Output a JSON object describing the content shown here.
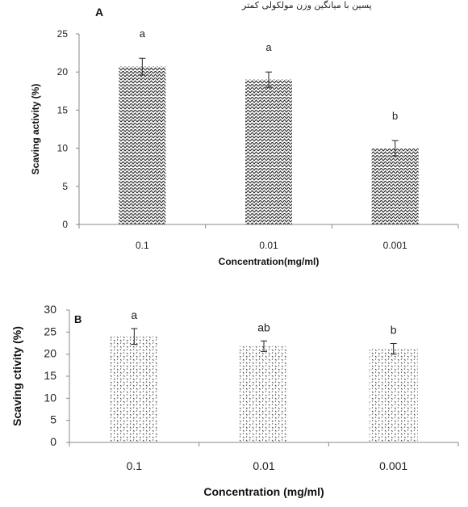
{
  "header_text": "پسین با میانگین وزن مولکولی کمتر",
  "chart_data": [
    {
      "type": "bar",
      "panel": "A",
      "categories": [
        "0.1",
        "0.01",
        "0.001"
      ],
      "values": [
        20.7,
        19.0,
        10.0
      ],
      "errors": [
        1.1,
        1.0,
        1.0
      ],
      "letters": [
        "a",
        "a",
        "b"
      ],
      "xlabel": "Concentration(mg/ml)",
      "ylabel": "Scaving activity  (%)",
      "ylim": [
        0,
        25
      ],
      "yticks": [
        0,
        5,
        10,
        15,
        20,
        25
      ],
      "grid": false,
      "legend": "none",
      "pattern": "zigzag"
    },
    {
      "type": "bar",
      "panel": "B",
      "categories": [
        "0.1",
        "0.01",
        "0.001"
      ],
      "values": [
        24.0,
        21.8,
        21.2
      ],
      "errors": [
        1.8,
        1.2,
        1.2
      ],
      "letters": [
        "a",
        "ab",
        "b"
      ],
      "xlabel": "Concentration (mg/ml)",
      "ylabel": "Scaving ctivity (%)",
      "ylim": [
        0,
        30
      ],
      "yticks": [
        0,
        5,
        10,
        15,
        20,
        25,
        30
      ],
      "grid": false,
      "legend": "none",
      "pattern": "dots"
    }
  ]
}
